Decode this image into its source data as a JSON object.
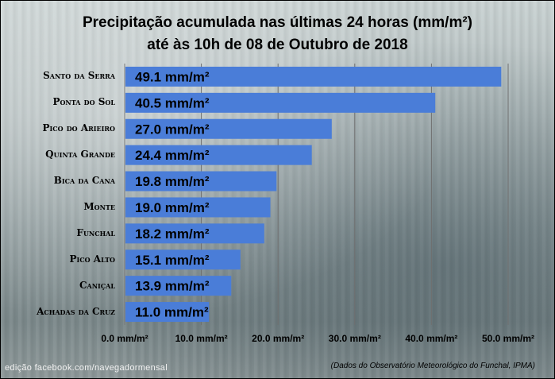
{
  "chart_data": {
    "type": "bar",
    "orientation": "horizontal",
    "title_line1": "Precipitação acumulada nas últimas 24 horas (mm/m²)",
    "title_line2": "até às 10h de 08 de Outubro de 2018",
    "categories": [
      "Santo da Serra",
      "Ponta do Sol",
      "Pico do Arieiro",
      "Quinta Grande",
      "Bica da Cana",
      "Monte",
      "Funchal",
      "Pico Alto",
      "Caniçal",
      "Achadas da Cruz"
    ],
    "values": [
      49.1,
      40.5,
      27.0,
      24.4,
      19.8,
      19.0,
      18.2,
      15.1,
      13.9,
      11.0
    ],
    "value_labels": [
      "49.1 mm/m²",
      "40.5 mm/m²",
      "27.0 mm/m²",
      "24.4 mm/m²",
      "19.8 mm/m²",
      "19.0 mm/m²",
      "18.2 mm/m²",
      "15.1 mm/m²",
      "13.9 mm/m²",
      "11.0 mm/m²"
    ],
    "xlim": [
      0,
      50
    ],
    "xticks": [
      0,
      10,
      20,
      30,
      40,
      50
    ],
    "xtick_labels": [
      "0.0 mm/m²",
      "10.0 mm/m²",
      "20.0 mm/m²",
      "30.0 mm/m²",
      "40.0 mm/m²",
      "50.0 mm/m²"
    ],
    "grid": true,
    "bar_color": "#4a7dd8"
  },
  "credit": "edição facebook.com/navegadormensal",
  "source": "(Dados do Observatório Meteorológico do Funchal, IPMA)"
}
